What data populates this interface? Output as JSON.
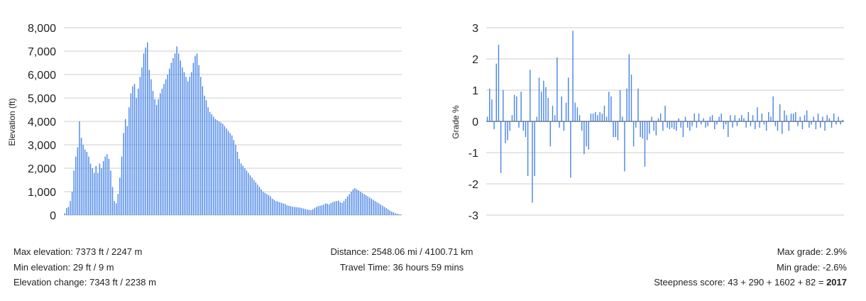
{
  "chart_data": [
    {
      "type": "bar",
      "title": "",
      "ylabel": "Elevation (ft)",
      "xlabel": "",
      "ylim": [
        0,
        8000
      ],
      "yticks": [
        0,
        1000,
        2000,
        3000,
        4000,
        5000,
        6000,
        7000,
        8000
      ],
      "ytick_labels": [
        "0",
        "1,000",
        "2,000",
        "3,000",
        "4,000",
        "5,000",
        "6,000",
        "7,000",
        "8,000"
      ],
      "grid": true,
      "color": "#4A86E8",
      "values": [
        80,
        300,
        350,
        600,
        1000,
        1900,
        2500,
        2900,
        4000,
        3300,
        3000,
        2800,
        2700,
        2500,
        2200,
        2000,
        1800,
        2100,
        1800,
        2200,
        2000,
        2300,
        2500,
        2600,
        2400,
        1900,
        1200,
        600,
        500,
        900,
        1600,
        2500,
        3500,
        4100,
        3800,
        4600,
        5200,
        5500,
        5600,
        5000,
        5400,
        5900,
        6300,
        6900,
        7150,
        7373,
        6200,
        5800,
        5300,
        4950,
        4700,
        4950,
        5200,
        5400,
        5600,
        5800,
        6000,
        6250,
        6500,
        6700,
        6900,
        7200,
        6900,
        6600,
        6300,
        6100,
        5900,
        5700,
        5900,
        6100,
        6500,
        6800,
        6900,
        6400,
        5900,
        5500,
        5100,
        4900,
        4600,
        4400,
        4300,
        4200,
        4100,
        4050,
        4000,
        3950,
        3900,
        3800,
        3700,
        3600,
        3500,
        3400,
        3200,
        3000,
        2700,
        2400,
        2200,
        2100,
        2000,
        1900,
        1800,
        1700,
        1600,
        1500,
        1400,
        1300,
        1200,
        1100,
        1000,
        950,
        900,
        850,
        800,
        700,
        650,
        600,
        580,
        550,
        520,
        500,
        480,
        420,
        400,
        380,
        360,
        350,
        340,
        330,
        320,
        300,
        280,
        260,
        240,
        220,
        210,
        250,
        300,
        350,
        380,
        400,
        420,
        450,
        500,
        480,
        460,
        520,
        560,
        580,
        600,
        620,
        550,
        520,
        600,
        700,
        800,
        900,
        1000,
        1100,
        1150,
        1100,
        1050,
        1000,
        950,
        900,
        850,
        800,
        750,
        700,
        650,
        600,
        550,
        500,
        450,
        400,
        350,
        300,
        250,
        200,
        150,
        120,
        80,
        60,
        40,
        29
      ],
      "bar_width_fraction": 0.55
    },
    {
      "type": "bar",
      "title": "",
      "ylabel": "Grade %",
      "xlabel": "",
      "ylim": [
        -3,
        3
      ],
      "yticks": [
        -3,
        -2,
        -1,
        0,
        1,
        2,
        3
      ],
      "ytick_labels": [
        "-3",
        "-2",
        "-1",
        "0",
        "1",
        "2",
        "3"
      ],
      "grid": true,
      "color": "#4A86E8",
      "values": [
        0.15,
        1.05,
        0.7,
        -0.25,
        1.85,
        2.45,
        -1.65,
        1.0,
        -0.7,
        -0.6,
        -0.3,
        0.2,
        0.85,
        0.8,
        -0.2,
        0.95,
        -0.3,
        -0.5,
        -1.75,
        1.65,
        -2.6,
        -1.75,
        0.15,
        1.4,
        0.95,
        1.3,
        1.1,
        0.75,
        -0.8,
        0.5,
        0.2,
        2.05,
        -0.2,
        0.8,
        -0.3,
        0.6,
        1.4,
        -1.8,
        2.9,
        0.6,
        0.45,
        0.2,
        -0.3,
        -1.05,
        -0.8,
        -0.9,
        0.25,
        0.25,
        0.3,
        0.2,
        0.3,
        0.25,
        0.5,
        0.15,
        0.95,
        0.8,
        -0.5,
        -0.5,
        -0.6,
        1.0,
        0.15,
        -1.6,
        1.05,
        2.15,
        1.5,
        -0.8,
        -0.2,
        1.05,
        -0.5,
        -0.55,
        -1.45,
        -0.6,
        -0.4,
        0.15,
        -0.3,
        -0.45,
        0.1,
        0.25,
        -0.3,
        0.5,
        -0.2,
        -0.25,
        -0.2,
        -0.25,
        -0.3,
        0.1,
        -0.2,
        -0.5,
        0.15,
        -0.2,
        -0.3,
        -0.15,
        0.25,
        -0.2,
        0.25,
        -0.1,
        0.1,
        -0.2,
        -0.15,
        0.15,
        0.2,
        -0.25,
        -0.1,
        0.15,
        0.25,
        -0.25,
        -0.1,
        -0.5,
        0.2,
        -0.2,
        0.2,
        -0.15,
        0.1,
        0.2,
        0.1,
        -0.2,
        0.3,
        -0.15,
        0.2,
        -0.25,
        0.45,
        -0.2,
        0.25,
        -0.1,
        -0.3,
        0.3,
        0.15,
        0.8,
        -0.15,
        -0.3,
        0.55,
        -0.4,
        0.35,
        0.2,
        -0.3,
        0.25,
        0.25,
        0.3,
        -0.15,
        0.15,
        -0.25,
        0.2,
        0.35,
        -0.2,
        -0.1,
        0.15,
        -0.25,
        0.25,
        -0.2,
        0.15,
        -0.3,
        0.2,
        0.1,
        -0.2,
        0.25,
        -0.1,
        0.15,
        -0.1,
        0.05
      ],
      "bar_width_fraction": 0.45
    }
  ],
  "stats": {
    "left": [
      "Max elevation: 7373 ft / 2247 m",
      "Min elevation: 29 ft / 9 m",
      "Elevation change: 7343 ft / 2238 m"
    ],
    "center": [
      "Distance: 2548.06 mi / 4100.71 km",
      "Travel Time: 36 hours 59 mins"
    ],
    "right": {
      "max_grade": "Max grade: 2.9%",
      "min_grade": "Min grade: -2.6%",
      "steepness_prefix": "Steepness score: 43 + 290 + 1602 + 82 = ",
      "steepness_total": "2017"
    }
  }
}
